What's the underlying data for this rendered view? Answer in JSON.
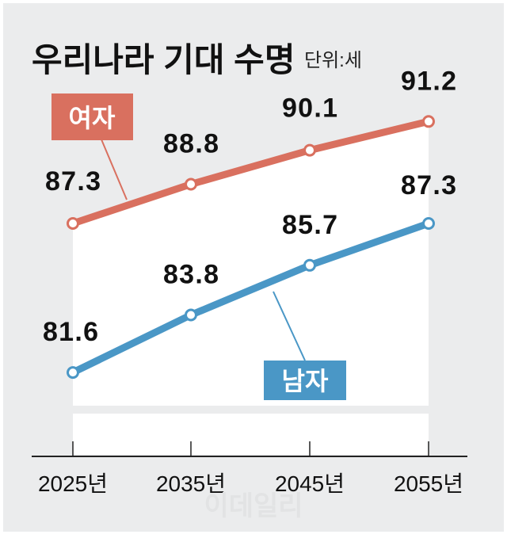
{
  "chart_data": {
    "type": "line",
    "title": "우리나라 기대 수명",
    "unit": "단위:세",
    "categories": [
      "2025년",
      "2035년",
      "2045년",
      "2055년"
    ],
    "series": [
      {
        "name": "여자",
        "values": [
          87.3,
          88.8,
          90.1,
          91.2
        ],
        "labels": [
          "87.3",
          "88.8",
          "90.1",
          "91.2"
        ],
        "color": "#d9705f"
      },
      {
        "name": "남자",
        "values": [
          81.6,
          83.8,
          85.7,
          87.3
        ],
        "labels": [
          "81.6",
          "83.8",
          "85.7",
          "87.3"
        ],
        "color": "#4a97c6"
      }
    ],
    "grid": false,
    "xlabel": "",
    "ylabel": ""
  },
  "watermark": "이데일리"
}
